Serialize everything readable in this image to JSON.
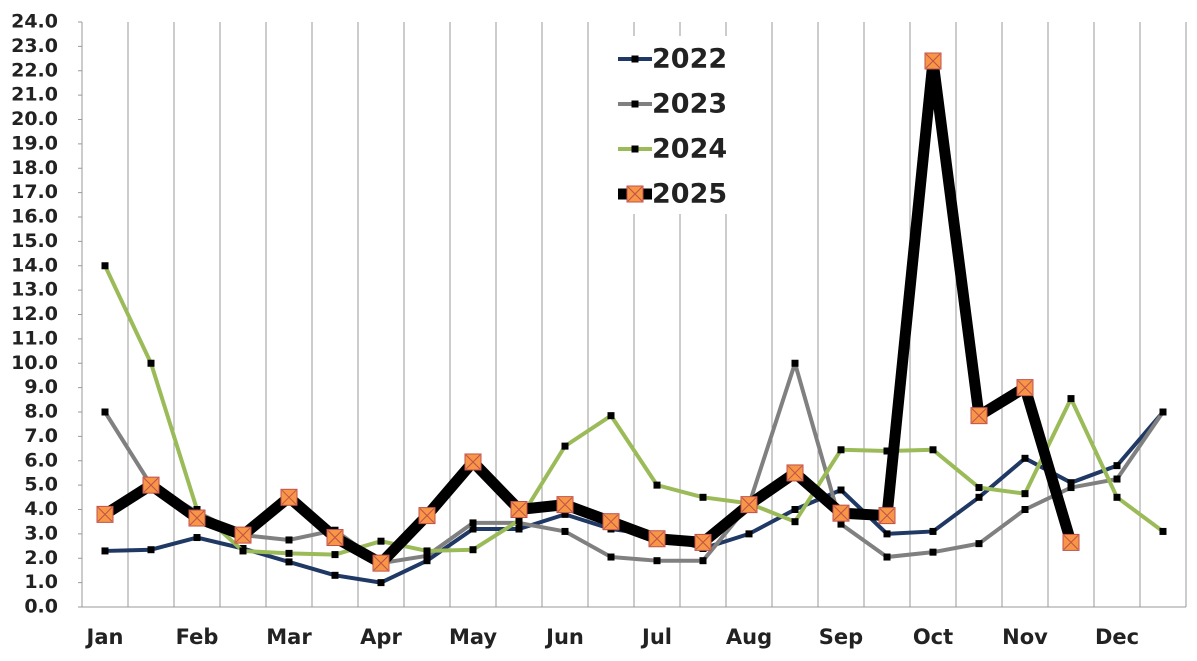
{
  "chart_data": {
    "type": "line",
    "categories": [
      "Jan",
      null,
      "Feb",
      null,
      "Mar",
      null,
      "Apr",
      null,
      "May",
      null,
      "Jun",
      null,
      "Jul",
      null,
      "Aug",
      null,
      "Sep",
      null,
      "Oct",
      null,
      "Nov",
      null,
      "Dec",
      null
    ],
    "series": [
      {
        "name": "2022",
        "color": "#203864",
        "marker_color": "#000000",
        "line_width": 4,
        "values": [
          2.3,
          2.35,
          2.85,
          2.4,
          1.85,
          1.3,
          1.0,
          1.9,
          3.2,
          3.2,
          3.8,
          3.2,
          2.95,
          2.4,
          3.0,
          4.0,
          4.8,
          3.0,
          3.1,
          4.5,
          6.1,
          5.1,
          5.8,
          8.0
        ]
      },
      {
        "name": "2023",
        "color": "#808080",
        "marker_color": "#000000",
        "line_width": 4,
        "values": [
          8.0,
          5.0,
          3.9,
          2.95,
          2.75,
          3.15,
          1.8,
          2.1,
          3.45,
          3.45,
          3.1,
          2.05,
          1.9,
          1.9,
          4.2,
          10.0,
          3.4,
          2.05,
          2.25,
          2.6,
          4.0,
          4.9,
          5.25,
          8.0
        ]
      },
      {
        "name": "2024",
        "color": "#9bbb59",
        "marker_color": "#000000",
        "line_width": 4,
        "values": [
          14.0,
          10.0,
          4.0,
          2.3,
          2.2,
          2.15,
          2.7,
          2.3,
          2.35,
          3.55,
          6.6,
          7.85,
          5.0,
          4.5,
          4.25,
          3.5,
          6.45,
          6.4,
          6.45,
          4.9,
          4.65,
          8.55,
          4.5,
          3.1
        ]
      },
      {
        "name": "2025",
        "color": "#000000",
        "marker_color": "#f79646",
        "line_width": 11,
        "values": [
          3.8,
          5.0,
          3.65,
          2.95,
          4.5,
          2.85,
          1.8,
          3.75,
          5.95,
          4.0,
          4.2,
          3.5,
          2.8,
          2.65,
          4.2,
          5.5,
          3.85,
          3.75,
          22.4,
          7.85,
          9.0,
          2.65,
          null,
          null
        ]
      }
    ],
    "ylim": [
      0,
      24
    ],
    "yticks": [
      {
        "value": 0,
        "label": "0.0"
      },
      {
        "value": 1,
        "label": "1.0"
      },
      {
        "value": 2,
        "label": "2.0"
      },
      {
        "value": 3,
        "label": "3.0"
      },
      {
        "value": 4,
        "label": "4.0"
      },
      {
        "value": 5,
        "label": "5.0"
      },
      {
        "value": 6,
        "label": "6.0"
      },
      {
        "value": 7,
        "label": "7.0"
      },
      {
        "value": 8,
        "label": "8.0"
      },
      {
        "value": 9,
        "label": "9.0"
      },
      {
        "value": 10,
        "label": "10.0"
      },
      {
        "value": 11,
        "label": "11.0"
      },
      {
        "value": 12,
        "label": "12.0"
      },
      {
        "value": 13,
        "label": "13.0"
      },
      {
        "value": 14,
        "label": "14.0"
      },
      {
        "value": 15,
        "label": "15.0"
      },
      {
        "value": 16,
        "label": "16.0"
      },
      {
        "value": 17,
        "label": "17.0"
      },
      {
        "value": 18,
        "label": "18.0"
      },
      {
        "value": 19,
        "label": "19.0"
      },
      {
        "value": 20,
        "label": "20.0"
      },
      {
        "value": 21,
        "label": "21.0"
      },
      {
        "value": 22,
        "label": "22.0"
      },
      {
        "value": 23,
        "label": "23.0"
      },
      {
        "value": 24,
        "label": "24.0"
      }
    ],
    "grid": "x",
    "legend": "top"
  }
}
